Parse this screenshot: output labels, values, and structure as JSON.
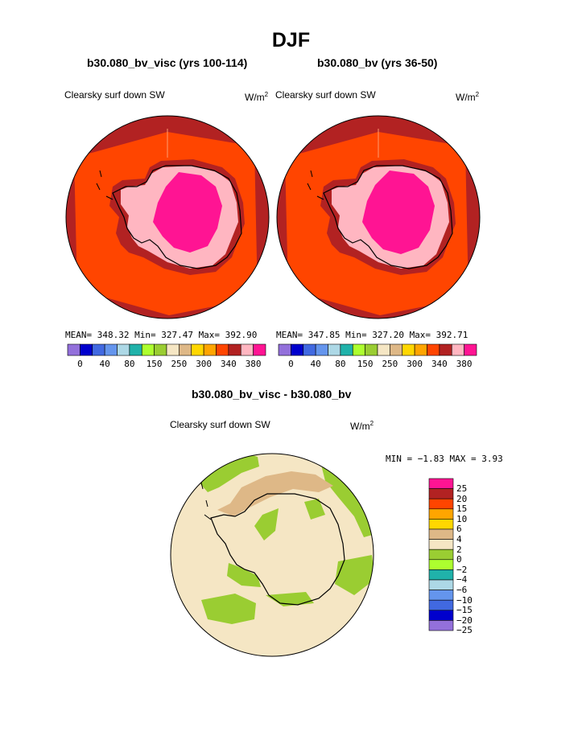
{
  "title": "DJF",
  "colors": {
    "abs_scale": [
      "#9370db",
      "#0000cd",
      "#4169e1",
      "#6495ed",
      "#add8e6",
      "#20b2aa",
      "#adff2f",
      "#9acd32",
      "#f5e6c4",
      "#deb887",
      "#ffd700",
      "#ffa500",
      "#ff4500",
      "#b22222",
      "#ffb6c1",
      "#ff1493"
    ],
    "diff_scale": [
      "#ff1493",
      "#b22222",
      "#ff4500",
      "#ffa500",
      "#ffd700",
      "#deb887",
      "#f5e6c4",
      "#9acd32",
      "#adff2f",
      "#20b2aa",
      "#add8e6",
      "#6495ed",
      "#4169e1",
      "#0000cd",
      "#9370db"
    ]
  },
  "panels": [
    {
      "case_title": "b30.080_bv_visc (yrs 100-114)",
      "variable": "Clearsky surf down SW",
      "units_base": "W/m",
      "units_exp": "2",
      "stats": "MEAN= 348.32  Min= 327.47  Max= 392.90"
    },
    {
      "case_title": "b30.080_bv (yrs 36-50)",
      "variable": "Clearsky surf down SW",
      "units_base": "W/m",
      "units_exp": "2",
      "stats": "MEAN= 347.85  Min= 327.20  Max= 392.71"
    }
  ],
  "diff_panel": {
    "case_title": "b30.080_bv_visc - b30.080_bv",
    "variable": "Clearsky surf down SW",
    "units_base": "W/m",
    "units_exp": "2",
    "stats": "MIN =  −1.83 MAX =    3.93"
  },
  "chart_data": [
    {
      "type": "heatmap",
      "projection": "polar-stereographic-south",
      "title": "b30.080_bv_visc (yrs 100-114)",
      "field": "Clearsky surf down SW",
      "units": "W/m2",
      "mean": 348.32,
      "min": 327.47,
      "max": 392.9,
      "colorbar_ticks": [
        "0",
        "40",
        "80",
        "150",
        "250",
        "300",
        "340",
        "380"
      ]
    },
    {
      "type": "heatmap",
      "projection": "polar-stereographic-south",
      "title": "b30.080_bv (yrs 36-50)",
      "field": "Clearsky surf down SW",
      "units": "W/m2",
      "mean": 347.85,
      "min": 327.2,
      "max": 392.71,
      "colorbar_ticks": [
        "0",
        "40",
        "80",
        "150",
        "250",
        "300",
        "340",
        "380"
      ]
    },
    {
      "type": "heatmap",
      "projection": "polar-stereographic-south",
      "title": "b30.080_bv_visc - b30.080_bv",
      "field": "Clearsky surf down SW",
      "units": "W/m2",
      "min": -1.83,
      "max": 3.93,
      "colorbar_ticks": [
        "25",
        "20",
        "15",
        "10",
        "6",
        "4",
        "2",
        "0",
        "−2",
        "−4",
        "−6",
        "−10",
        "−15",
        "−20",
        "−25"
      ]
    }
  ]
}
